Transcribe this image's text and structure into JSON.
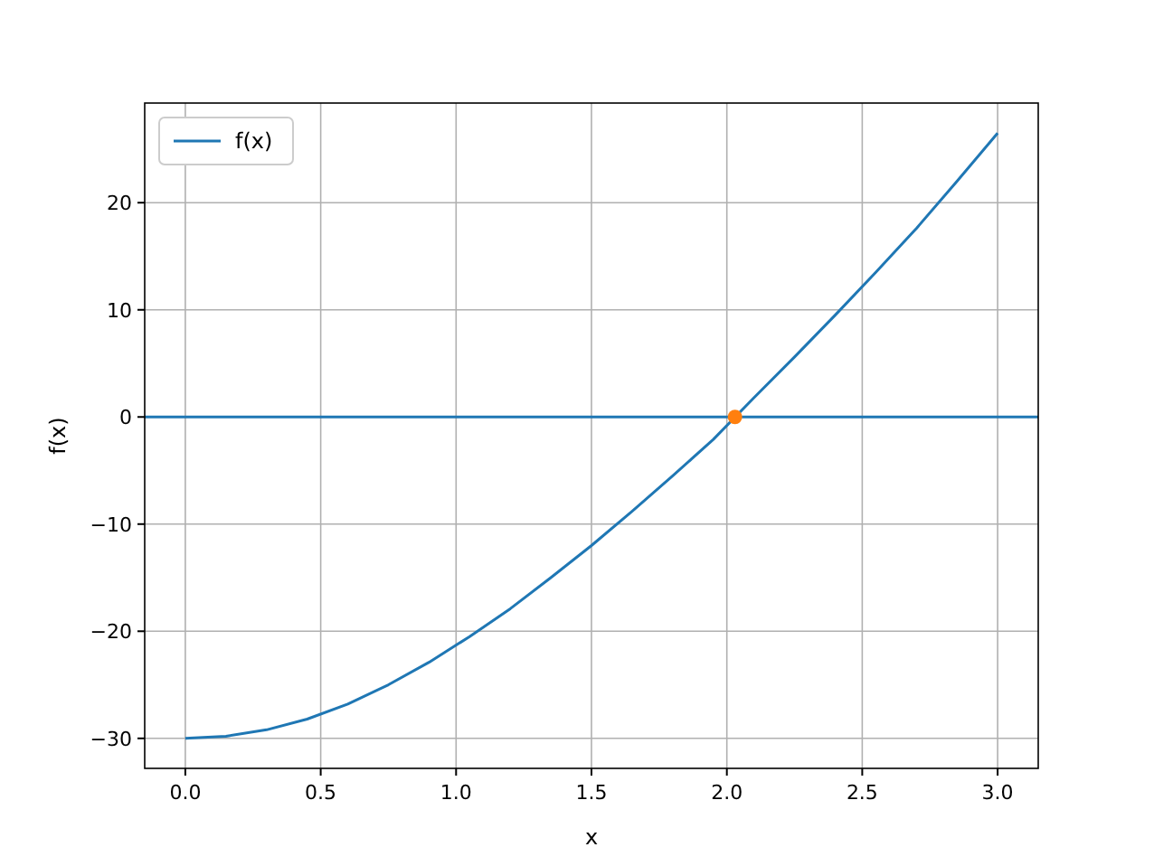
{
  "chart_data": {
    "type": "line",
    "xlabel": "x",
    "ylabel": "f(x)",
    "xlim": [
      -0.15,
      3.15
    ],
    "ylim": [
      -32.8,
      29.3
    ],
    "xticks": [
      {
        "value": 0,
        "label": "0.0"
      },
      {
        "value": 0.5,
        "label": "0.5"
      },
      {
        "value": 1,
        "label": "1.0"
      },
      {
        "value": 1.5,
        "label": "1.5"
      },
      {
        "value": 2,
        "label": "2.0"
      },
      {
        "value": 2.5,
        "label": "2.5"
      },
      {
        "value": 3,
        "label": "3.0"
      }
    ],
    "yticks": [
      {
        "value": -30,
        "label": "−30"
      },
      {
        "value": -20,
        "label": "−20"
      },
      {
        "value": -10,
        "label": "−10"
      },
      0,
      10,
      20
    ],
    "grid": true,
    "legend": "top left",
    "ref_lines": [
      {
        "axis": "y",
        "value": 0,
        "color": "#1f77b4"
      }
    ],
    "series": [
      {
        "name": "f(x)",
        "color": "#1f77b4",
        "x": [
          0,
          0.15,
          0.3,
          0.45,
          0.6,
          0.75,
          0.9,
          1.05,
          1.2,
          1.35,
          1.5,
          1.65,
          1.8,
          1.95,
          2.1,
          2.25,
          2.4,
          2.55,
          2.7,
          2.85,
          3.0
        ],
        "values": [
          -30,
          -29.8,
          -29.2,
          -28.2,
          -26.8,
          -25.0,
          -22.9,
          -20.5,
          -17.9,
          -15.0,
          -12.0,
          -8.8,
          -5.5,
          -2.1,
          1.8,
          5.6,
          9.5,
          13.5,
          17.6,
          22.0,
          26.5
        ]
      },
      {
        "type": "scatter",
        "color": "#ff7f0e",
        "marker": "circle",
        "x": [
          2.03
        ],
        "values": [
          0
        ]
      }
    ]
  }
}
